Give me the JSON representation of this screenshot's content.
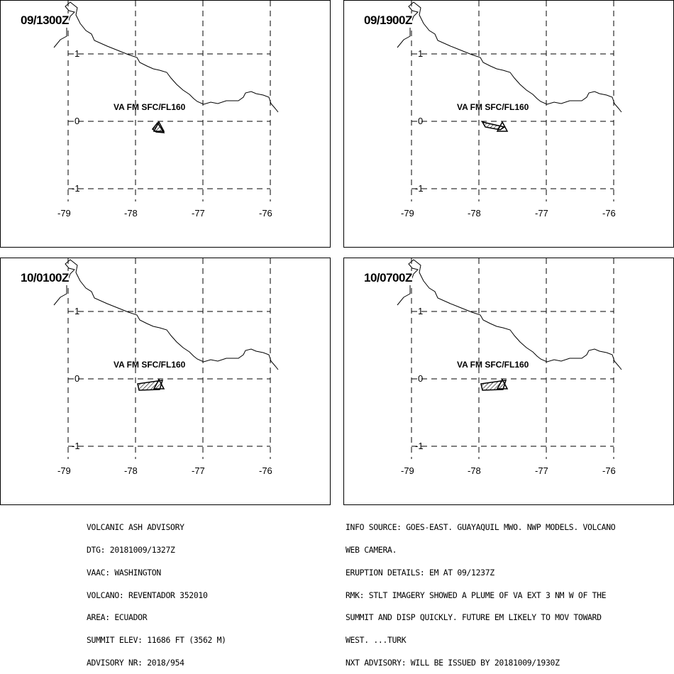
{
  "panels": [
    {
      "time": "09/1300Z",
      "label": "VA FM SFC/FL160",
      "plume": "small"
    },
    {
      "time": "09/1900Z",
      "label": "VA FM SFC/FL160",
      "plume": "medium"
    },
    {
      "time": "10/0100Z",
      "label": "VA FM SFC/FL160",
      "plume": "large"
    },
    {
      "time": "10/0700Z",
      "label": "VA FM SFC/FL160",
      "plume": "large"
    }
  ],
  "axes": {
    "lon_ticks": [
      "-79",
      "-78",
      "-77",
      "-76"
    ],
    "lat_ticks": [
      "1",
      "0",
      "-1"
    ]
  },
  "advisory_left": [
    "VOLCANIC ASH ADVISORY",
    "DTG: 20181009/1327Z",
    "VAAC: WASHINGTON",
    "VOLCANO: REVENTADOR 352010",
    "AREA: ECUADOR",
    "SUMMIT ELEV: 11686 FT (3562 M)",
    "ADVISORY NR: 2018/954"
  ],
  "advisory_right": [
    "INFO SOURCE: GOES-EAST. GUAYAQUIL MWO. NWP MODELS. VOLCANO",
    "WEB CAMERA.",
    "ERUPTION DETAILS: EM AT 09/1237Z",
    "RMK: STLT IMAGERY SHOWED A PLUME OF VA EXT 3 NM W OF THE",
    "SUMMIT AND DISP QUICKLY. FUTURE EM LIKELY TO MOV TOWARD",
    "WEST. ...TURK",
    "NXT ADVISORY: WILL BE ISSUED BY 20181009/1930Z"
  ]
}
